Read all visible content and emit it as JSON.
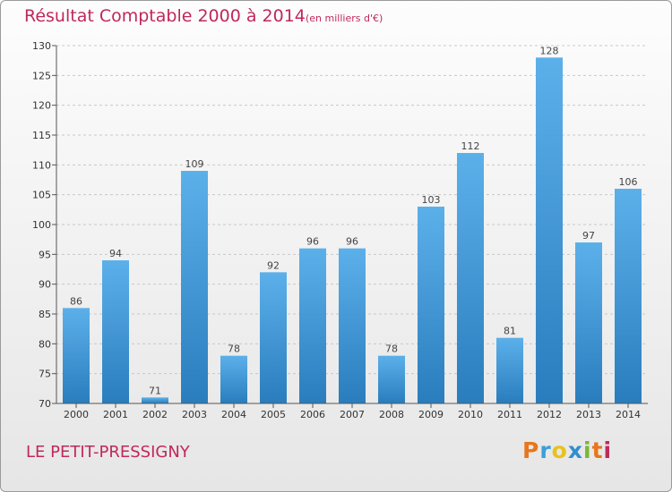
{
  "header": {
    "title": "Résultat Comptable 2000 à 2014",
    "unit": "(en milliers d'€)"
  },
  "footer": {
    "commune": "LE PETIT-PRESSIGNY",
    "logo": "Proxiti"
  },
  "colors": {
    "title": "#c0285a",
    "bar_light": "#5aaee8",
    "bar_dark": "#2a7fc0"
  },
  "chart_data": {
    "type": "bar",
    "title": "Résultat Comptable 2000 à 2014",
    "xlabel": "",
    "ylabel": "",
    "categories": [
      "2000",
      "2001",
      "2002",
      "2003",
      "2004",
      "2005",
      "2006",
      "2007",
      "2008",
      "2009",
      "2010",
      "2011",
      "2012",
      "2013",
      "2014"
    ],
    "values": [
      86,
      94,
      71,
      109,
      78,
      92,
      96,
      96,
      78,
      103,
      112,
      81,
      128,
      97,
      106
    ],
    "ylim": [
      70,
      130
    ],
    "yticks": [
      70,
      75,
      80,
      85,
      90,
      95,
      100,
      105,
      110,
      115,
      120,
      125,
      130
    ],
    "grid": true,
    "data_labels": true
  }
}
